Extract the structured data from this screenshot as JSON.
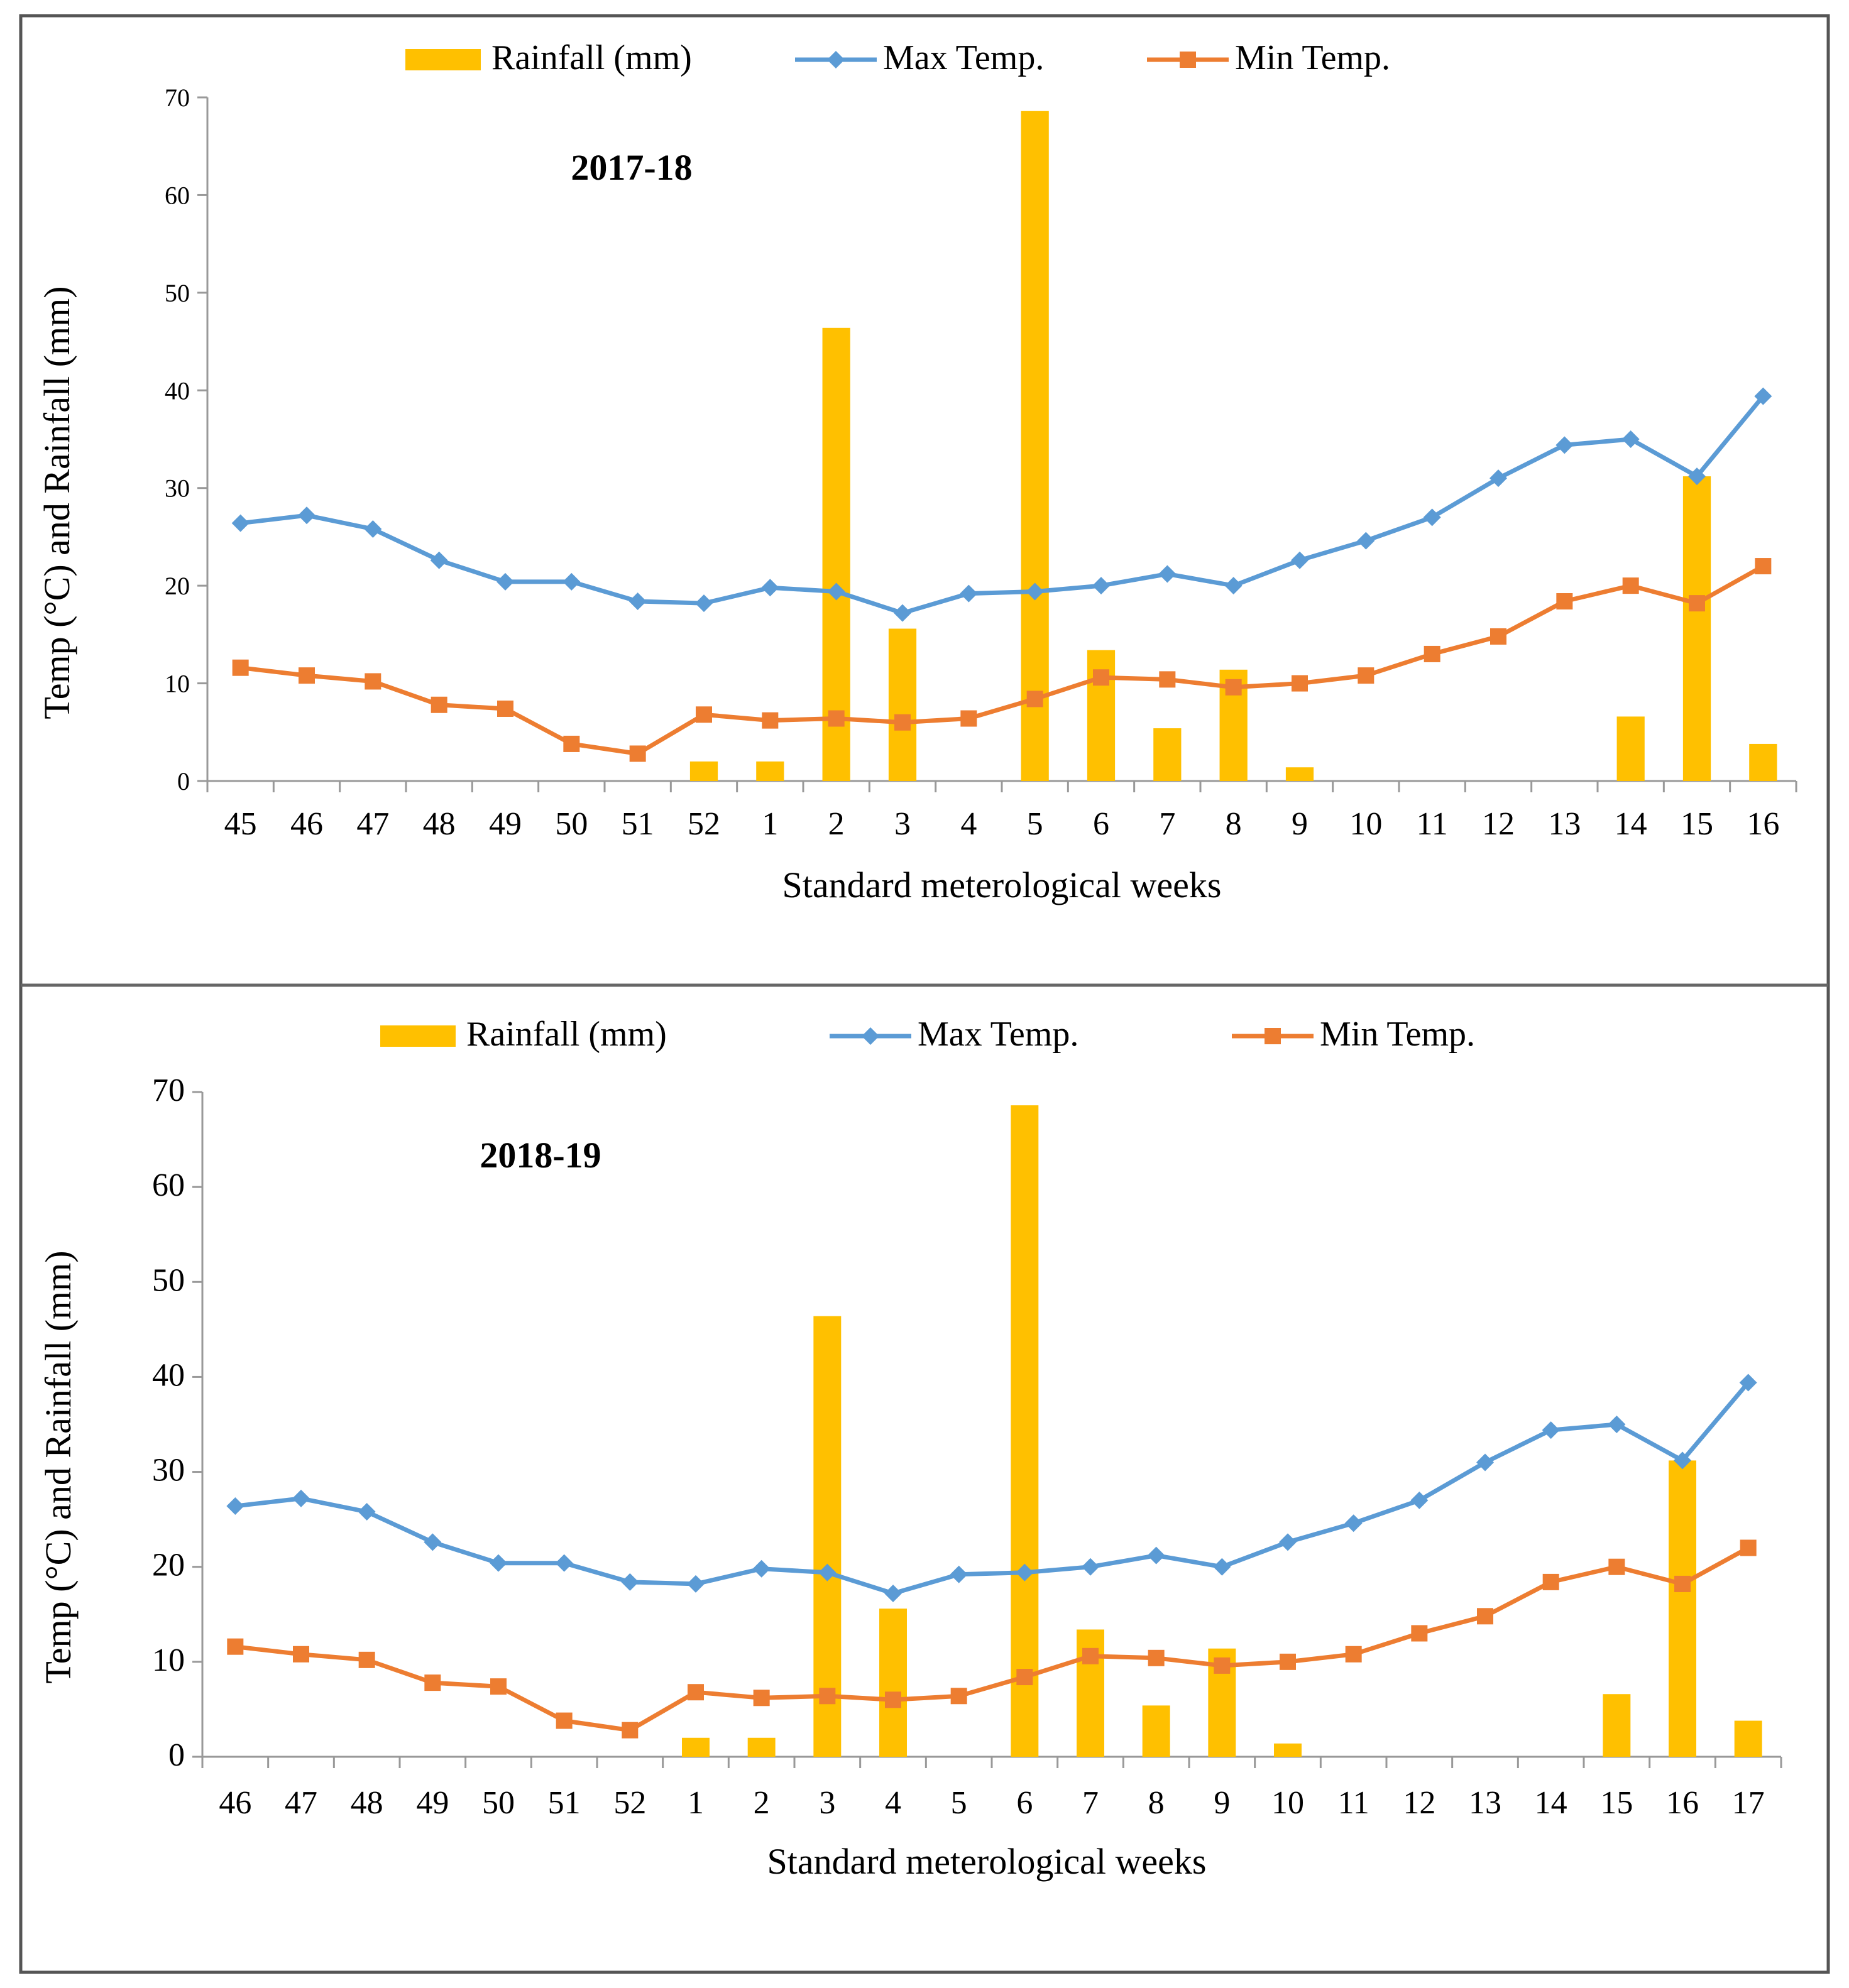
{
  "colors": {
    "rainfall": "#FFC000",
    "max_temp": "#5B9BD5",
    "min_temp": "#ED7D31",
    "axis": "#999999",
    "border": "#555555"
  },
  "chart_data": [
    {
      "type": "bar+line",
      "title": "2017-18",
      "xlabel": "Standard meterological weeks",
      "ylabel": "Temp (°C) and Rainfall (mm)",
      "ylim": [
        0,
        70
      ],
      "yticks": [
        0,
        10,
        20,
        30,
        40,
        50,
        60,
        70
      ],
      "legend": [
        "Rainfall (mm)",
        "Max Temp.",
        "Min Temp."
      ],
      "categories": [
        "45",
        "46",
        "47",
        "48",
        "49",
        "50",
        "51",
        "52",
        "1",
        "2",
        "3",
        "4",
        "5",
        "6",
        "7",
        "8",
        "9",
        "10",
        "11",
        "12",
        "13",
        "14",
        "15",
        "16"
      ],
      "series": [
        {
          "name": "Rainfall (mm)",
          "kind": "bar",
          "values": [
            0,
            0,
            0,
            0,
            0,
            0,
            0,
            2,
            2,
            46.4,
            15.6,
            0,
            68.6,
            13.4,
            5.4,
            11.4,
            1.4,
            0,
            0,
            0,
            0,
            6.6,
            31.2,
            3.8
          ]
        },
        {
          "name": "Max Temp.",
          "kind": "line",
          "marker": "diamond",
          "values": [
            26.4,
            27.2,
            25.8,
            22.6,
            20.4,
            20.4,
            18.4,
            18.2,
            19.8,
            19.4,
            17.2,
            19.2,
            19.4,
            20,
            21.2,
            20,
            22.6,
            24.6,
            27,
            31,
            34.4,
            35,
            31.2,
            39.4
          ]
        },
        {
          "name": "Min Temp.",
          "kind": "line",
          "marker": "square",
          "values": [
            11.6,
            10.8,
            10.2,
            7.8,
            7.4,
            3.8,
            2.8,
            6.8,
            6.2,
            6.4,
            6,
            6.4,
            8.4,
            10.6,
            10.4,
            9.6,
            10,
            10.8,
            13,
            14.8,
            18.4,
            20,
            18.2,
            22
          ]
        }
      ]
    },
    {
      "type": "bar+line",
      "title": "2018-19",
      "xlabel": "Standard meterological weeks",
      "ylabel": "Temp (°C) and Rainfall (mm)",
      "ylim": [
        0,
        70
      ],
      "yticks": [
        0,
        10,
        20,
        30,
        40,
        50,
        60,
        70
      ],
      "legend": [
        "Rainfall (mm)",
        "Max Temp.",
        "Min Temp."
      ],
      "categories": [
        "46",
        "47",
        "48",
        "49",
        "50",
        "51",
        "52",
        "1",
        "2",
        "3",
        "4",
        "5",
        "6",
        "7",
        "8",
        "9",
        "10",
        "11",
        "12",
        "13",
        "14",
        "15",
        "16",
        "17"
      ],
      "series": [
        {
          "name": "Rainfall (mm)",
          "kind": "bar",
          "values": [
            0,
            0,
            0,
            0,
            0,
            0,
            0,
            2,
            2,
            46.4,
            15.6,
            0,
            68.6,
            13.4,
            5.4,
            11.4,
            1.4,
            0,
            0,
            0,
            0,
            6.6,
            31.2,
            3.8
          ]
        },
        {
          "name": "Max Temp.",
          "kind": "line",
          "marker": "diamond",
          "values": [
            26.4,
            27.2,
            25.8,
            22.6,
            20.4,
            20.4,
            18.4,
            18.2,
            19.8,
            19.4,
            17.2,
            19.2,
            19.4,
            20,
            21.2,
            20,
            22.6,
            24.6,
            27,
            31,
            34.4,
            35,
            31.2,
            39.4
          ]
        },
        {
          "name": "Min Temp.",
          "kind": "line",
          "marker": "square",
          "values": [
            11.6,
            10.8,
            10.2,
            7.8,
            7.4,
            3.8,
            2.8,
            6.8,
            6.2,
            6.4,
            6,
            6.4,
            8.4,
            10.6,
            10.4,
            9.6,
            10,
            10.8,
            13,
            14.8,
            18.4,
            20,
            18.2,
            22
          ]
        }
      ]
    }
  ]
}
